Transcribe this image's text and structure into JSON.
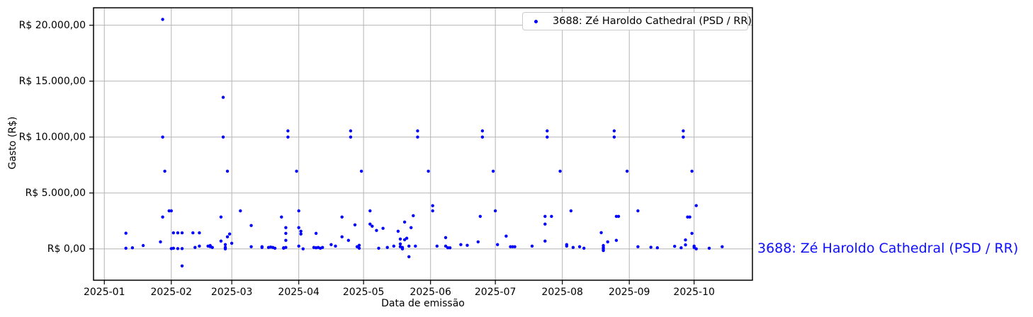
{
  "figure": {
    "background": "#ffffff",
    "annotation": {
      "text": "3688: Zé Haroldo Cathedral (PSD / RR)",
      "color": "#0f0fff"
    }
  },
  "chart_data": {
    "type": "scatter",
    "title": "",
    "xlabel": "Data de emissão",
    "ylabel": "Gasto (R$)",
    "grid": true,
    "legend_position": "top-right",
    "marker_color": "#0000ff",
    "grid_color": "#b5b5b5",
    "frame_color": "#000000",
    "x_range": [
      "2024-12-27",
      "2025-10-28"
    ],
    "y_range": [
      -2800,
      21560
    ],
    "x_tick_dates": [
      "2025-01-01",
      "2025-02-01",
      "2025-03-01",
      "2025-04-01",
      "2025-05-01",
      "2025-06-01",
      "2025-07-01",
      "2025-08-01",
      "2025-09-01",
      "2025-10-01"
    ],
    "x_tick_labels": [
      "2025-01",
      "2025-02",
      "2025-03",
      "2025-04",
      "2025-05",
      "2025-06",
      "2025-07",
      "2025-08",
      "2025-09",
      "2025-10"
    ],
    "y_tick_values": [
      0,
      5000,
      10000,
      15000,
      20000
    ],
    "y_tick_labels": [
      "R$ 0,00",
      "R$ 5.000,00",
      "R$ 10.000,00",
      "R$ 15.000,00",
      "R$ 20.000,00"
    ],
    "series": [
      {
        "name": "3688: Zé Haroldo Cathedral (PSD / RR)",
        "points": [
          [
            "2025-01-11",
            1400
          ],
          [
            "2025-01-11",
            60
          ],
          [
            "2025-01-14",
            100
          ],
          [
            "2025-01-19",
            300
          ],
          [
            "2025-01-27",
            630
          ],
          [
            "2025-01-28",
            2850
          ],
          [
            "2025-01-28",
            20520
          ],
          [
            "2025-01-28",
            10000
          ],
          [
            "2025-01-29",
            6950
          ],
          [
            "2025-01-31",
            3400
          ],
          [
            "2025-02-01",
            3400
          ],
          [
            "2025-02-01",
            30
          ],
          [
            "2025-02-02",
            1430
          ],
          [
            "2025-02-02",
            60
          ],
          [
            "2025-02-04",
            1430
          ],
          [
            "2025-02-04",
            30
          ],
          [
            "2025-02-06",
            1430
          ],
          [
            "2025-02-06",
            30
          ],
          [
            "2025-02-06",
            -1520
          ],
          [
            "2025-02-11",
            1430
          ],
          [
            "2025-02-12",
            130
          ],
          [
            "2025-02-14",
            1430
          ],
          [
            "2025-02-14",
            250
          ],
          [
            "2025-02-18",
            250
          ],
          [
            "2025-02-19",
            300
          ],
          [
            "2025-02-19",
            200
          ],
          [
            "2025-02-20",
            130
          ],
          [
            "2025-02-24",
            2850
          ],
          [
            "2025-02-24",
            700
          ],
          [
            "2025-02-25",
            13550
          ],
          [
            "2025-02-25",
            10000
          ],
          [
            "2025-02-26",
            380
          ],
          [
            "2025-02-26",
            130
          ],
          [
            "2025-02-26",
            0
          ],
          [
            "2025-02-27",
            6950
          ],
          [
            "2025-02-27",
            1080
          ],
          [
            "2025-02-28",
            1330
          ],
          [
            "2025-03-01",
            500
          ],
          [
            "2025-03-05",
            3400
          ],
          [
            "2025-03-10",
            2090
          ],
          [
            "2025-03-10",
            190
          ],
          [
            "2025-03-15",
            130
          ],
          [
            "2025-03-15",
            190
          ],
          [
            "2025-03-18",
            130
          ],
          [
            "2025-03-19",
            160
          ],
          [
            "2025-03-20",
            130
          ],
          [
            "2025-03-21",
            60
          ],
          [
            "2025-03-24",
            2850
          ],
          [
            "2025-03-25",
            100
          ],
          [
            "2025-03-25",
            60
          ],
          [
            "2025-03-26",
            1900
          ],
          [
            "2025-03-26",
            1390
          ],
          [
            "2025-03-26",
            760
          ],
          [
            "2025-03-26",
            130
          ],
          [
            "2025-03-27",
            10550
          ],
          [
            "2025-03-27",
            10000
          ],
          [
            "2025-03-31",
            6950
          ],
          [
            "2025-04-01",
            3400
          ],
          [
            "2025-04-01",
            1900
          ],
          [
            "2025-04-01",
            250
          ],
          [
            "2025-04-02",
            1580
          ],
          [
            "2025-04-02",
            1330
          ],
          [
            "2025-04-03",
            0
          ],
          [
            "2025-04-08",
            130
          ],
          [
            "2025-04-09",
            1390
          ],
          [
            "2025-04-09",
            100
          ],
          [
            "2025-04-10",
            130
          ],
          [
            "2025-04-11",
            60
          ],
          [
            "2025-04-12",
            130
          ],
          [
            "2025-04-16",
            380
          ],
          [
            "2025-04-18",
            250
          ],
          [
            "2025-04-21",
            2850
          ],
          [
            "2025-04-21",
            1080
          ],
          [
            "2025-04-24",
            760
          ],
          [
            "2025-04-25",
            10550
          ],
          [
            "2025-04-25",
            10000
          ],
          [
            "2025-04-27",
            2150
          ],
          [
            "2025-04-28",
            190
          ],
          [
            "2025-04-29",
            320
          ],
          [
            "2025-04-29",
            60
          ],
          [
            "2025-04-30",
            6950
          ],
          [
            "2025-05-04",
            3400
          ],
          [
            "2025-05-04",
            2220
          ],
          [
            "2025-05-05",
            2030
          ],
          [
            "2025-05-07",
            1650
          ],
          [
            "2025-05-08",
            60
          ],
          [
            "2025-05-10",
            1840
          ],
          [
            "2025-05-12",
            130
          ],
          [
            "2025-05-15",
            250
          ],
          [
            "2025-05-17",
            1580
          ],
          [
            "2025-05-18",
            885
          ],
          [
            "2025-05-18",
            440
          ],
          [
            "2025-05-18",
            190
          ],
          [
            "2025-05-19",
            130
          ],
          [
            "2025-05-19",
            0
          ],
          [
            "2025-05-20",
            2400
          ],
          [
            "2025-05-20",
            820
          ],
          [
            "2025-05-21",
            950
          ],
          [
            "2025-05-22",
            250
          ],
          [
            "2025-05-22",
            -700
          ],
          [
            "2025-05-23",
            1900
          ],
          [
            "2025-05-24",
            2970
          ],
          [
            "2025-05-25",
            250
          ],
          [
            "2025-05-26",
            10550
          ],
          [
            "2025-05-26",
            10000
          ],
          [
            "2025-05-31",
            6950
          ],
          [
            "2025-06-02",
            3860
          ],
          [
            "2025-06-02",
            3400
          ],
          [
            "2025-06-04",
            250
          ],
          [
            "2025-06-08",
            1010
          ],
          [
            "2025-06-08",
            250
          ],
          [
            "2025-06-09",
            100
          ],
          [
            "2025-06-10",
            100
          ],
          [
            "2025-06-15",
            380
          ],
          [
            "2025-06-18",
            320
          ],
          [
            "2025-06-23",
            630
          ],
          [
            "2025-06-24",
            2910
          ],
          [
            "2025-06-25",
            10550
          ],
          [
            "2025-06-25",
            10000
          ],
          [
            "2025-06-30",
            6950
          ],
          [
            "2025-07-01",
            3400
          ],
          [
            "2025-07-02",
            380
          ],
          [
            "2025-07-06",
            1140
          ],
          [
            "2025-07-08",
            190
          ],
          [
            "2025-07-09",
            190
          ],
          [
            "2025-07-10",
            190
          ],
          [
            "2025-07-18",
            250
          ],
          [
            "2025-07-24",
            2910
          ],
          [
            "2025-07-24",
            2220
          ],
          [
            "2025-07-24",
            700
          ],
          [
            "2025-07-25",
            10550
          ],
          [
            "2025-07-25",
            10000
          ],
          [
            "2025-07-27",
            2910
          ],
          [
            "2025-07-31",
            6950
          ],
          [
            "2025-08-03",
            250
          ],
          [
            "2025-08-03",
            380
          ],
          [
            "2025-08-05",
            3400
          ],
          [
            "2025-08-06",
            130
          ],
          [
            "2025-08-09",
            190
          ],
          [
            "2025-08-11",
            60
          ],
          [
            "2025-08-19",
            1450
          ],
          [
            "2025-08-20",
            300
          ],
          [
            "2025-08-20",
            130
          ],
          [
            "2025-08-20",
            0
          ],
          [
            "2025-08-20",
            -150
          ],
          [
            "2025-08-22",
            630
          ],
          [
            "2025-08-25",
            10550
          ],
          [
            "2025-08-25",
            10000
          ],
          [
            "2025-08-26",
            2910
          ],
          [
            "2025-08-26",
            760
          ],
          [
            "2025-08-27",
            2910
          ],
          [
            "2025-08-31",
            6950
          ],
          [
            "2025-09-05",
            3400
          ],
          [
            "2025-09-05",
            190
          ],
          [
            "2025-09-11",
            150
          ],
          [
            "2025-09-14",
            100
          ],
          [
            "2025-09-22",
            230
          ],
          [
            "2025-09-25",
            100
          ],
          [
            "2025-09-26",
            10550
          ],
          [
            "2025-09-26",
            10000
          ],
          [
            "2025-09-27",
            360
          ],
          [
            "2025-09-27",
            800
          ],
          [
            "2025-09-28",
            2850
          ],
          [
            "2025-09-29",
            2850
          ],
          [
            "2025-09-30",
            1390
          ],
          [
            "2025-09-30",
            6950
          ],
          [
            "2025-10-02",
            3870
          ],
          [
            "2025-10-01",
            250
          ],
          [
            "2025-10-01",
            130
          ],
          [
            "2025-10-02",
            0
          ],
          [
            "2025-10-08",
            60
          ],
          [
            "2025-10-14",
            190
          ]
        ]
      }
    ]
  }
}
